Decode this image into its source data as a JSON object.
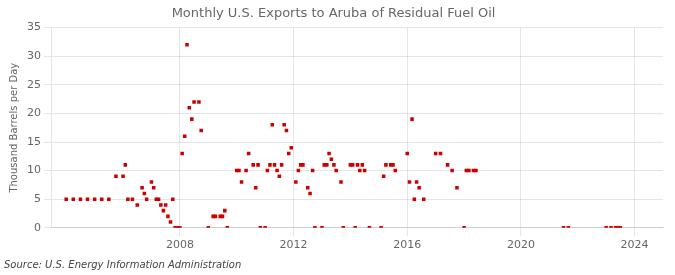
{
  "chart_data": {
    "type": "scatter",
    "title": "Monthly U.S. Exports to Aruba of Residual Fuel Oil",
    "ylabel": "Thousand Barrels per Day",
    "annotation": "Source: U.S. Energy Information Administration",
    "color": "#cc0000",
    "marker": "square",
    "grid": true,
    "xlim": [
      2003.5,
      2025.0
    ],
    "xticks": [
      2008,
      2012,
      2016,
      2020,
      2024
    ],
    "ylim": [
      0,
      35
    ],
    "yticks": [
      0,
      5,
      10,
      15,
      20,
      25,
      30,
      35
    ],
    "x": [
      2004.0,
      2004.25,
      2004.5,
      2004.75,
      2005.0,
      2005.25,
      2005.5,
      2005.75,
      2006.0,
      2006.08,
      2006.17,
      2006.33,
      2006.5,
      2006.67,
      2006.75,
      2006.83,
      2007.0,
      2007.08,
      2007.17,
      2007.25,
      2007.33,
      2007.42,
      2007.5,
      2007.58,
      2007.67,
      2007.75,
      2007.83,
      2007.92,
      2008.0,
      2008.08,
      2008.17,
      2008.25,
      2008.33,
      2008.42,
      2008.5,
      2008.67,
      2008.75,
      2009.0,
      2009.17,
      2009.25,
      2009.42,
      2009.5,
      2009.58,
      2009.67,
      2010.0,
      2010.08,
      2010.17,
      2010.33,
      2010.42,
      2010.58,
      2010.67,
      2010.75,
      2010.83,
      2011.0,
      2011.08,
      2011.17,
      2011.25,
      2011.33,
      2011.42,
      2011.5,
      2011.58,
      2011.67,
      2011.75,
      2011.83,
      2011.92,
      2012.08,
      2012.17,
      2012.25,
      2012.33,
      2012.5,
      2012.58,
      2012.67,
      2012.75,
      2013.0,
      2013.08,
      2013.17,
      2013.25,
      2013.33,
      2013.42,
      2013.5,
      2013.67,
      2013.75,
      2014.0,
      2014.08,
      2014.17,
      2014.25,
      2014.33,
      2014.42,
      2014.5,
      2014.67,
      2015.08,
      2015.17,
      2015.25,
      2015.42,
      2015.5,
      2015.58,
      2016.0,
      2016.08,
      2016.17,
      2016.25,
      2016.33,
      2016.42,
      2016.58,
      2017.0,
      2017.17,
      2017.42,
      2017.58,
      2017.75,
      2018.0,
      2018.08,
      2018.17,
      2018.33,
      2018.42,
      2021.5,
      2021.67,
      2023.0,
      2023.17,
      2023.33,
      2023.42,
      2023.5
    ],
    "values": [
      5,
      5,
      5,
      5,
      5,
      5,
      5,
      9,
      9,
      11,
      5,
      5,
      4,
      7,
      6,
      5,
      8,
      7,
      5,
      5,
      4,
      3,
      4,
      2,
      1,
      5,
      0,
      0,
      0,
      13,
      16,
      32,
      21,
      19,
      22,
      22,
      17,
      0,
      2,
      2,
      2,
      2,
      3,
      0,
      10,
      10,
      8,
      10,
      13,
      11,
      7,
      11,
      0,
      0,
      10,
      11,
      18,
      11,
      10,
      9,
      11,
      18,
      17,
      13,
      14,
      8,
      10,
      11,
      11,
      7,
      6,
      10,
      0,
      0,
      11,
      11,
      13,
      12,
      11,
      10,
      8,
      0,
      11,
      11,
      0,
      11,
      10,
      11,
      10,
      0,
      0,
      9,
      11,
      11,
      11,
      10,
      13,
      8,
      19,
      5,
      8,
      7,
      5,
      13,
      13,
      11,
      10,
      7,
      0,
      10,
      10,
      10,
      10,
      0,
      0,
      0,
      0,
      0,
      0,
      0
    ]
  }
}
